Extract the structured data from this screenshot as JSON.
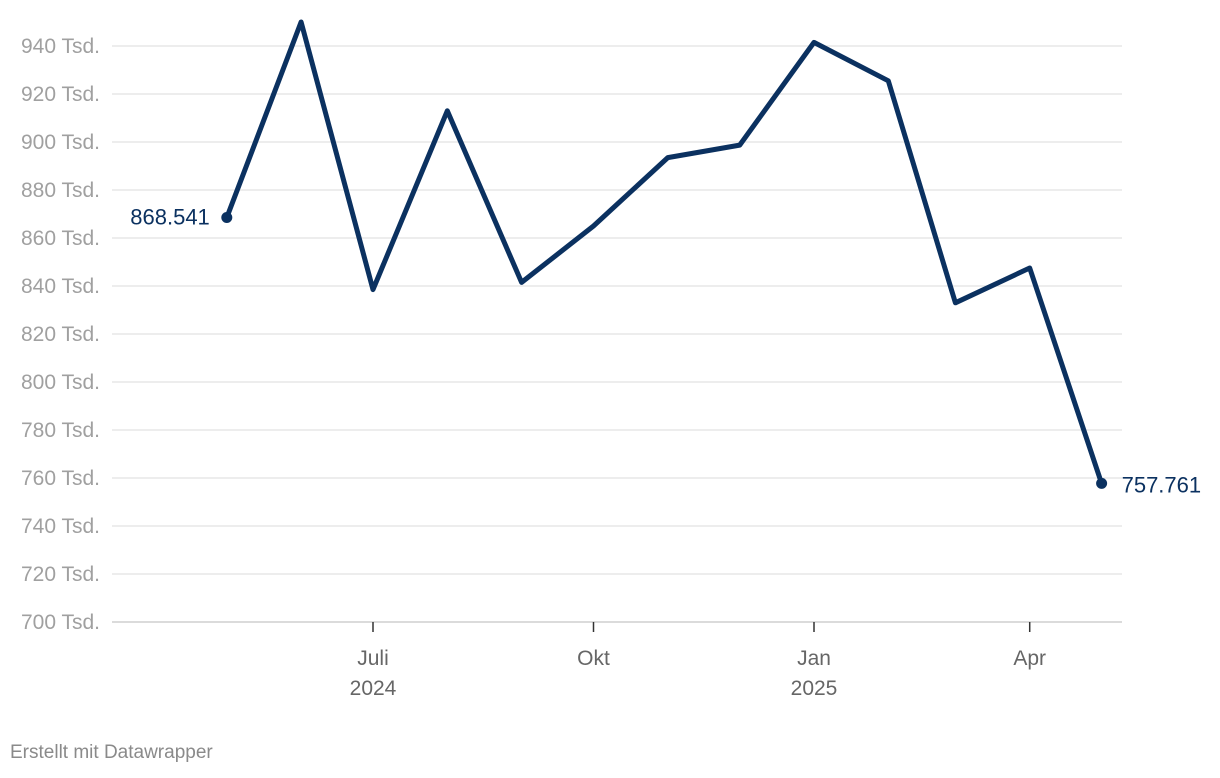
{
  "chart_data": {
    "type": "line",
    "title": "",
    "xlabel": "",
    "ylabel": "",
    "ylim": [
      700000,
      950000
    ],
    "y_ticks": [
      {
        "value": 700000,
        "label": "700 Tsd."
      },
      {
        "value": 720000,
        "label": "720 Tsd."
      },
      {
        "value": 740000,
        "label": "740 Tsd."
      },
      {
        "value": 760000,
        "label": "760 Tsd."
      },
      {
        "value": 780000,
        "label": "780 Tsd."
      },
      {
        "value": 800000,
        "label": "800 Tsd."
      },
      {
        "value": 820000,
        "label": "820 Tsd."
      },
      {
        "value": 840000,
        "label": "840 Tsd."
      },
      {
        "value": 860000,
        "label": "860 Tsd."
      },
      {
        "value": 880000,
        "label": "880 Tsd."
      },
      {
        "value": 900000,
        "label": "900 Tsd."
      },
      {
        "value": 920000,
        "label": "920 Tsd."
      },
      {
        "value": 940000,
        "label": "940 Tsd."
      }
    ],
    "x_ticks": [
      {
        "date": "2024-07-01",
        "label": "Juli",
        "sublabel": "2024"
      },
      {
        "date": "2024-10-01",
        "label": "Okt",
        "sublabel": ""
      },
      {
        "date": "2025-01-01",
        "label": "Jan",
        "sublabel": "2025"
      },
      {
        "date": "2025-04-01",
        "label": "Apr",
        "sublabel": ""
      }
    ],
    "series": [
      {
        "color": "#0b3160",
        "points": [
          {
            "x": "2024-05-01",
            "y": 868541
          },
          {
            "x": "2024-06-01",
            "y": 950000
          },
          {
            "x": "2024-07-01",
            "y": 838500
          },
          {
            "x": "2024-08-01",
            "y": 913000
          },
          {
            "x": "2024-09-01",
            "y": 841500
          },
          {
            "x": "2024-10-01",
            "y": 865000
          },
          {
            "x": "2024-11-01",
            "y": 893500
          },
          {
            "x": "2024-12-01",
            "y": 898700
          },
          {
            "x": "2025-01-01",
            "y": 941500
          },
          {
            "x": "2025-02-01",
            "y": 925500
          },
          {
            "x": "2025-03-01",
            "y": 833000
          },
          {
            "x": "2025-04-01",
            "y": 847500
          },
          {
            "x": "2025-05-01",
            "y": 757761
          }
        ]
      }
    ],
    "end_labels": {
      "start": "868.541",
      "end": "757.761"
    },
    "grid": true,
    "legend": "none"
  },
  "footer": {
    "credit": "Erstellt mit Datawrapper"
  },
  "colors": {
    "line": "#0b3160",
    "grid": "#e2e2e2",
    "axis": "#333333"
  }
}
